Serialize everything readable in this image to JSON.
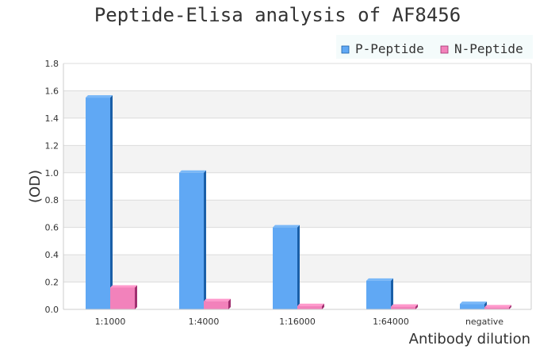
{
  "chart_data": {
    "type": "bar",
    "title": "Peptide-Elisa analysis of AF8456",
    "xlabel": "Antibody dilution",
    "ylabel": "(OD)",
    "categories": [
      "1:1000",
      "1:4000",
      "1:16000",
      "1:64000",
      "negative"
    ],
    "series": [
      {
        "name": "P-Peptide",
        "color": "#60a8f4",
        "values": [
          1.55,
          1.0,
          0.6,
          0.21,
          0.04
        ]
      },
      {
        "name": "N-Peptide",
        "color": "#f282bb",
        "values": [
          0.16,
          0.06,
          0.025,
          0.02,
          0.015
        ]
      }
    ],
    "ylim": [
      0,
      1.8
    ],
    "yticks": [
      "0.0",
      "0.2",
      "0.4",
      "0.6",
      "0.8",
      "1.0",
      "1.2",
      "1.4",
      "1.6",
      "1.8"
    ],
    "grid": true,
    "legend_position": "top-right",
    "style": "3d-bars"
  }
}
